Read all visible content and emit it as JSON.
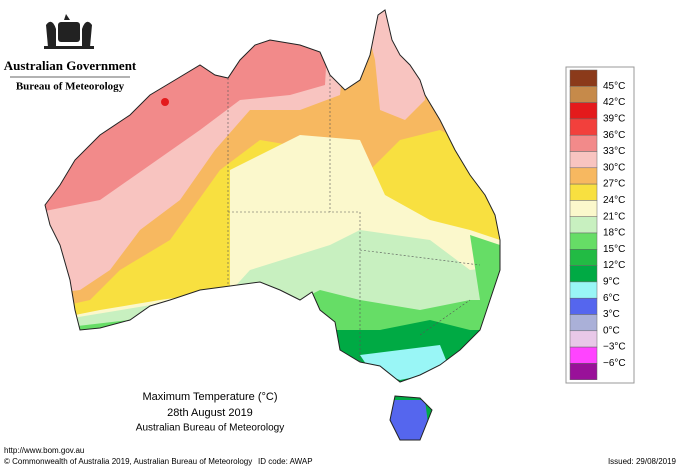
{
  "header": {
    "government": "Australian Government",
    "bureau": "Bureau of Meteorology"
  },
  "legend": {
    "swatches": [
      "#8b3a1a",
      "#c68a4a",
      "#e41a1c",
      "#f2403c",
      "#f28a8a",
      "#f8c4c0",
      "#f7b860",
      "#f8e040",
      "#fbf8cc",
      "#c8f0c0",
      "#66dd66",
      "#22bb44",
      "#00aa44",
      "#99f6f6",
      "#5566ee",
      "#aab0d8",
      "#e8c8e8",
      "#ff44ff",
      "#991199"
    ],
    "labels": [
      "45°C",
      "42°C",
      "39°C",
      "36°C",
      "33°C",
      "30°C",
      "27°C",
      "24°C",
      "21°C",
      "18°C",
      "15°C",
      "12°C",
      "9°C",
      "6°C",
      "3°C",
      "0°C",
      "−3°C",
      "−6°C"
    ]
  },
  "title": {
    "line1": "Maximum Temperature (°C)",
    "line2": "28th August 2019",
    "line3": "Australian Bureau of Meteorology"
  },
  "footer": {
    "url": "http://www.bom.gov.au",
    "copyright": "© Commonwealth of Australia 2019, Australian Bureau of Meteorology",
    "id": "ID code: AWAP",
    "issued": "Issued: 29/08/2019"
  }
}
